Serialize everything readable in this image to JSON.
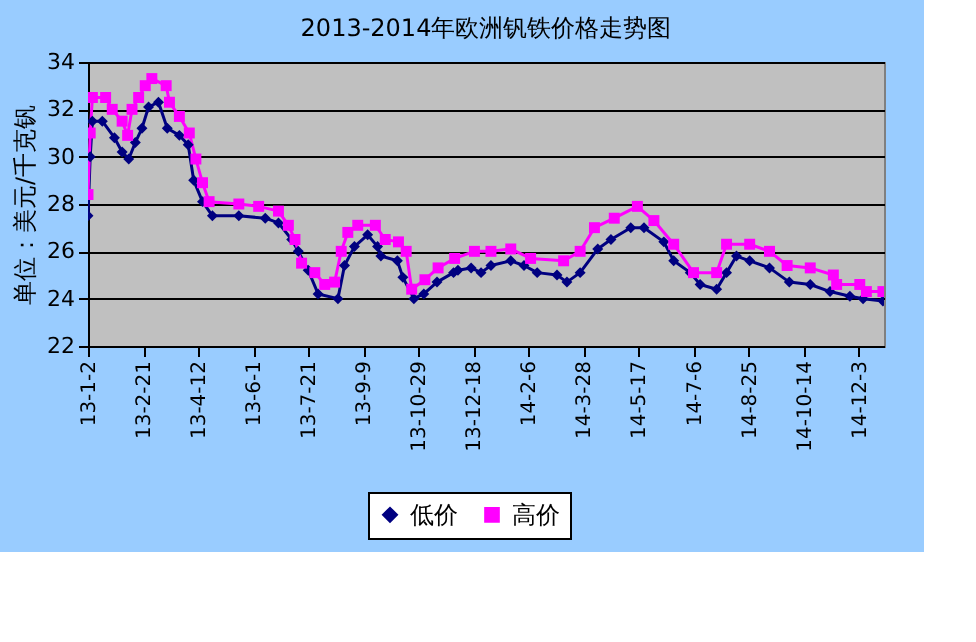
{
  "chart_data": {
    "type": "line",
    "title": "2013-2014年欧洲钒铁价格走势图",
    "ylabel": "单位：美元/千克钒",
    "xlim": [
      "2013-01-02",
      "2014-12-26"
    ],
    "xticks": [
      {
        "value": "2013-01-02",
        "label": "13-1-2"
      },
      {
        "value": "2013-02-21",
        "label": "13-2-21"
      },
      {
        "value": "2013-04-12",
        "label": "13-4-12"
      },
      {
        "value": "2013-06-01",
        "label": "13-6-1"
      },
      {
        "value": "2013-07-21",
        "label": "13-7-21"
      },
      {
        "value": "2013-09-09",
        "label": "13-9-9"
      },
      {
        "value": "2013-10-29",
        "label": "13-10-29"
      },
      {
        "value": "2013-12-18",
        "label": "13-12-18"
      },
      {
        "value": "2014-02-06",
        "label": "14-2-6"
      },
      {
        "value": "2014-03-28",
        "label": "14-3-28"
      },
      {
        "value": "2014-05-17",
        "label": "14-5-17"
      },
      {
        "value": "2014-07-06",
        "label": "14-7-6"
      },
      {
        "value": "2014-08-25",
        "label": "14-8-25"
      },
      {
        "value": "2014-10-14",
        "label": "14-10-14"
      },
      {
        "value": "2014-12-03",
        "label": "14-12-3"
      }
    ],
    "ylim": [
      22,
      34
    ],
    "yticks": [
      22,
      24,
      26,
      28,
      30,
      32,
      34
    ],
    "grid": "y",
    "legend": "bottom",
    "line_style": "solid",
    "series": [
      {
        "name": "低价",
        "color": "#000080",
        "marker": "diamond",
        "x": [
          "2013-01-02",
          "2013-01-04",
          "2013-01-06",
          "2013-01-15",
          "2013-01-26",
          "2013-02-02",
          "2013-02-08",
          "2013-02-14",
          "2013-02-20",
          "2013-02-26",
          "2013-03-07",
          "2013-03-15",
          "2013-03-26",
          "2013-04-03",
          "2013-04-08",
          "2013-04-16",
          "2013-04-25",
          "2013-05-19",
          "2013-06-12",
          "2013-06-24",
          "2013-07-06",
          "2013-07-12",
          "2013-07-21",
          "2013-07-30",
          "2013-08-17",
          "2013-08-23",
          "2013-09-01",
          "2013-09-13",
          "2013-09-22",
          "2013-09-25",
          "2013-10-10",
          "2013-10-15",
          "2013-10-25",
          "2013-11-03",
          "2013-11-15",
          "2013-11-30",
          "2013-12-04",
          "2013-12-16",
          "2013-12-25",
          "2014-01-03",
          "2014-01-21",
          "2014-02-02",
          "2014-02-14",
          "2014-03-04",
          "2014-03-13",
          "2014-03-25",
          "2014-04-10",
          "2014-04-22",
          "2014-05-10",
          "2014-05-22",
          "2014-06-09",
          "2014-06-18",
          "2014-07-03",
          "2014-07-12",
          "2014-07-27",
          "2014-08-05",
          "2014-08-14",
          "2014-08-26",
          "2014-09-13",
          "2014-10-01",
          "2014-10-20",
          "2014-11-07",
          "2014-11-25",
          "2014-12-07",
          "2014-12-25"
        ],
        "values": [
          27.5,
          30.0,
          31.5,
          31.5,
          30.8,
          30.2,
          29.9,
          30.6,
          31.2,
          32.1,
          32.3,
          31.2,
          30.9,
          30.5,
          29.0,
          28.1,
          27.5,
          27.5,
          27.4,
          27.2,
          26.5,
          26.0,
          25.2,
          24.2,
          24.0,
          25.4,
          26.2,
          26.7,
          26.2,
          25.8,
          25.6,
          24.9,
          24.0,
          24.2,
          24.7,
          25.1,
          25.2,
          25.3,
          25.1,
          25.4,
          25.6,
          25.4,
          25.1,
          25.0,
          24.7,
          25.1,
          26.1,
          26.5,
          27.0,
          27.0,
          26.4,
          25.6,
          25.1,
          24.6,
          24.4,
          25.1,
          25.8,
          25.6,
          25.3,
          24.7,
          24.6,
          24.3,
          24.1,
          24.0,
          23.9
        ]
      },
      {
        "name": "高价",
        "color": "#ff00ff",
        "marker": "square",
        "x": [
          "2013-01-02",
          "2013-01-04",
          "2013-01-06",
          "2013-01-18",
          "2013-01-24",
          "2013-02-02",
          "2013-02-07",
          "2013-02-11",
          "2013-02-17",
          "2013-02-23",
          "2013-03-01",
          "2013-03-14",
          "2013-03-17",
          "2013-03-26",
          "2013-04-04",
          "2013-04-10",
          "2013-04-16",
          "2013-04-22",
          "2013-05-19",
          "2013-06-06",
          "2013-06-24",
          "2013-07-03",
          "2013-07-09",
          "2013-07-15",
          "2013-07-27",
          "2013-08-05",
          "2013-08-14",
          "2013-08-20",
          "2013-08-26",
          "2013-09-04",
          "2013-09-20",
          "2013-09-29",
          "2013-10-11",
          "2013-10-18",
          "2013-10-23",
          "2013-11-04",
          "2013-11-16",
          "2013-12-01",
          "2013-12-19",
          "2014-01-03",
          "2014-01-21",
          "2014-02-08",
          "2014-03-10",
          "2014-03-25",
          "2014-04-07",
          "2014-04-25",
          "2014-05-16",
          "2014-05-31",
          "2014-06-18",
          "2014-07-06",
          "2014-07-27",
          "2014-08-05",
          "2014-08-26",
          "2014-09-13",
          "2014-09-29",
          "2014-10-20",
          "2014-11-10",
          "2014-11-13",
          "2014-12-04",
          "2014-12-10",
          "2014-12-25"
        ],
        "values": [
          28.4,
          31.0,
          32.5,
          32.5,
          32.0,
          31.5,
          30.9,
          32.0,
          32.5,
          33.0,
          33.3,
          33.0,
          32.3,
          31.7,
          31.0,
          29.9,
          28.9,
          28.1,
          28.0,
          27.9,
          27.7,
          27.1,
          26.5,
          25.5,
          25.1,
          24.6,
          24.7,
          26.0,
          26.8,
          27.1,
          27.1,
          26.5,
          26.4,
          26.0,
          24.4,
          24.8,
          25.3,
          25.7,
          26.0,
          26.0,
          26.1,
          25.7,
          25.6,
          26.0,
          27.0,
          27.4,
          27.9,
          27.3,
          26.3,
          25.1,
          25.1,
          26.3,
          26.3,
          26.0,
          25.4,
          25.3,
          25.0,
          24.6,
          24.6,
          24.3,
          24.3
        ]
      }
    ]
  }
}
